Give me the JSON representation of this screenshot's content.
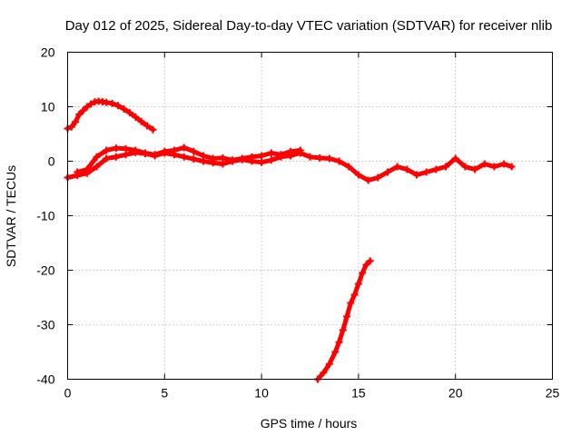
{
  "chart_data": {
    "type": "scatter",
    "title": "Day 012 of 2025, Sidereal Day-to-day VTEC variation (SDTVAR) for receiver nlib",
    "xlabel": "GPS time / hours",
    "ylabel": "SDTVAR / TECUs",
    "xlim": [
      0,
      25
    ],
    "ylim": [
      -40,
      20
    ],
    "xticks": [
      0,
      5,
      10,
      15,
      20,
      25
    ],
    "yticks": [
      -40,
      -30,
      -20,
      -10,
      0,
      10,
      20
    ],
    "grid": true,
    "series": [
      {
        "name": "SDTVAR arc 1 (early rising/falling)",
        "color": "#ff0000",
        "x": [
          0.0,
          0.2,
          0.4,
          0.6,
          0.8,
          1.0,
          1.2,
          1.4,
          1.6,
          1.8,
          2.0,
          2.3,
          2.6,
          2.9,
          3.2,
          3.5,
          3.8,
          4.1,
          4.4
        ],
        "y": [
          6.0,
          6.3,
          7.2,
          8.6,
          9.3,
          10.0,
          10.5,
          10.9,
          11.0,
          10.9,
          10.8,
          10.6,
          10.2,
          9.6,
          8.9,
          8.1,
          7.3,
          6.5,
          5.8
        ]
      },
      {
        "name": "SDTVAR arc 2 (near zero, long track)",
        "color": "#ff0000",
        "x": [
          0.0,
          0.5,
          1.0,
          1.5,
          2.0,
          2.5,
          3.0,
          3.5,
          4.0,
          4.5,
          5.0,
          5.5,
          6.0,
          6.5,
          7.0,
          7.5,
          8.0,
          8.5,
          9.0,
          9.5,
          10.0,
          10.5,
          11.0,
          11.5,
          12.0,
          12.5,
          13.0,
          13.5,
          14.0,
          14.5,
          15.0,
          15.5,
          16.0,
          16.5,
          17.0,
          17.5,
          18.0,
          18.5,
          19.0,
          19.5,
          20.0,
          20.5,
          21.0,
          21.5,
          22.0,
          22.5,
          22.9
        ],
        "y": [
          -3.0,
          -2.6,
          -2.2,
          -1.0,
          0.5,
          0.8,
          1.2,
          1.6,
          1.4,
          1.0,
          1.5,
          1.2,
          0.8,
          0.4,
          0.0,
          -0.3,
          -0.5,
          0.0,
          0.3,
          0.0,
          -0.2,
          0.2,
          0.8,
          1.0,
          1.5,
          0.8,
          0.6,
          0.5,
          0.0,
          -1.0,
          -2.5,
          -3.5,
          -3.0,
          -2.0,
          -1.0,
          -1.5,
          -2.5,
          -2.0,
          -1.5,
          -1.0,
          0.5,
          -1.0,
          -1.5,
          -0.5,
          -1.0,
          -0.5,
          -1.0
        ]
      },
      {
        "name": "SDTVAR arc 3 (secondary near-zero track)",
        "color": "#ff0000",
        "x": [
          0.5,
          1.0,
          1.5,
          2.0,
          2.5,
          3.0,
          3.5,
          4.0,
          4.5,
          5.0,
          5.5,
          6.0,
          6.5,
          7.0,
          7.5,
          8.0,
          8.5,
          9.0,
          9.5,
          10.0,
          10.5,
          11.0,
          11.5,
          12.0
        ],
        "y": [
          -2.0,
          -1.5,
          0.8,
          2.0,
          2.4,
          2.3,
          2.0,
          1.5,
          1.2,
          1.8,
          2.0,
          2.5,
          1.8,
          1.0,
          0.5,
          0.6,
          0.2,
          0.5,
          0.8,
          1.0,
          1.5,
          1.2,
          1.8,
          2.0
        ]
      },
      {
        "name": "SDTVAR arc 4 (steep drop)",
        "color": "#ff0000",
        "x": [
          12.9,
          13.2,
          13.5,
          13.8,
          14.0,
          14.2,
          14.4,
          14.6,
          14.8,
          15.0,
          15.2,
          15.4,
          15.6
        ],
        "y": [
          -40.0,
          -38.8,
          -37.2,
          -35.0,
          -33.2,
          -31.0,
          -28.5,
          -26.0,
          -24.5,
          -22.5,
          -20.5,
          -19.0,
          -18.3
        ]
      }
    ]
  }
}
